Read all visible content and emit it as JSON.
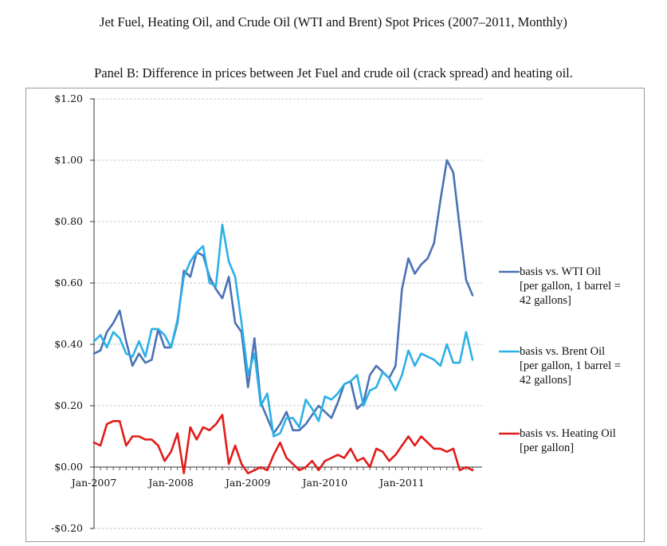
{
  "title": "Jet Fuel, Heating Oil, and Crude Oil (WTI and Brent) Spot Prices (2007–2011, Monthly)",
  "subtitle": "Panel B: Difference in prices between Jet Fuel and crude oil (crack spread) and heating oil.",
  "colors": {
    "wti": "#4a72b4",
    "brent": "#2bb0e6",
    "heating": "#e21b1b",
    "grid": "#c8c8c8",
    "axis": "#333333"
  },
  "chart_data": {
    "type": "line",
    "title": "Panel B: Difference in prices between Jet Fuel and crude oil (crack spread) and heating oil.",
    "xlabel": "",
    "ylabel": "",
    "ylim": [
      -0.2,
      1.2
    ],
    "yticks": [
      -0.2,
      0.0,
      0.2,
      0.4,
      0.6,
      0.8,
      1.0,
      1.2
    ],
    "ytick_labels": [
      "-$0.20",
      "$0.00",
      "$0.20",
      "$0.40",
      "$0.60",
      "$0.80",
      "$1.00",
      "$1.20"
    ],
    "xtick_labels": [
      "Jan-2007",
      "Jan-2008",
      "Jan-2009",
      "Jan-2010",
      "Jan-2011"
    ],
    "grid": true,
    "legend_position": "right",
    "x_index_range": [
      0,
      59
    ],
    "series": [
      {
        "name": "wti",
        "legend": [
          "basis vs. WTI Oil",
          "[per gallon, 1 barrel =",
          "42 gallons]"
        ],
        "values": [
          0.37,
          0.38,
          0.44,
          0.47,
          0.51,
          0.41,
          0.33,
          0.37,
          0.34,
          0.35,
          0.45,
          0.39,
          0.39,
          0.47,
          0.64,
          0.62,
          0.7,
          0.69,
          0.62,
          0.58,
          0.55,
          0.62,
          0.47,
          0.44,
          0.26,
          0.42,
          0.21,
          0.16,
          0.11,
          0.14,
          0.18,
          0.12,
          0.12,
          0.14,
          0.17,
          0.2,
          0.18,
          0.16,
          0.21,
          0.27,
          0.28,
          0.19,
          0.21,
          0.3,
          0.33,
          0.31,
          0.29,
          0.33,
          0.58,
          0.68,
          0.63,
          0.66,
          0.68,
          0.73,
          0.87,
          1.0,
          0.96,
          0.78,
          0.61,
          0.56
        ]
      },
      {
        "name": "brent",
        "legend": [
          "basis vs. Brent Oil",
          "[per gallon, 1 barrel =",
          "42 gallons]"
        ],
        "values": [
          0.41,
          0.43,
          0.39,
          0.44,
          0.42,
          0.37,
          0.36,
          0.41,
          0.36,
          0.45,
          0.45,
          0.43,
          0.39,
          0.48,
          0.62,
          0.67,
          0.7,
          0.72,
          0.6,
          0.59,
          0.79,
          0.67,
          0.62,
          0.47,
          0.3,
          0.37,
          0.2,
          0.24,
          0.1,
          0.11,
          0.16,
          0.16,
          0.13,
          0.22,
          0.19,
          0.15,
          0.23,
          0.22,
          0.24,
          0.27,
          0.28,
          0.3,
          0.2,
          0.25,
          0.26,
          0.31,
          0.29,
          0.25,
          0.3,
          0.38,
          0.33,
          0.37,
          0.36,
          0.35,
          0.33,
          0.4,
          0.34,
          0.34,
          0.44,
          0.35
        ]
      },
      {
        "name": "heating",
        "legend": [
          "basis vs. Heating Oil",
          "[per gallon]"
        ],
        "values": [
          0.08,
          0.07,
          0.14,
          0.15,
          0.15,
          0.07,
          0.1,
          0.1,
          0.09,
          0.09,
          0.07,
          0.02,
          0.05,
          0.11,
          -0.02,
          0.13,
          0.09,
          0.13,
          0.12,
          0.14,
          0.17,
          0.01,
          0.07,
          0.01,
          -0.02,
          -0.01,
          0.0,
          -0.01,
          0.04,
          0.08,
          0.03,
          0.01,
          -0.01,
          0.0,
          0.02,
          -0.01,
          0.02,
          0.03,
          0.04,
          0.03,
          0.06,
          0.02,
          0.03,
          0.0,
          0.06,
          0.05,
          0.02,
          0.04,
          0.07,
          0.1,
          0.07,
          0.1,
          0.08,
          0.06,
          0.06,
          0.05,
          0.06,
          -0.01,
          0.0,
          -0.01
        ]
      }
    ]
  }
}
